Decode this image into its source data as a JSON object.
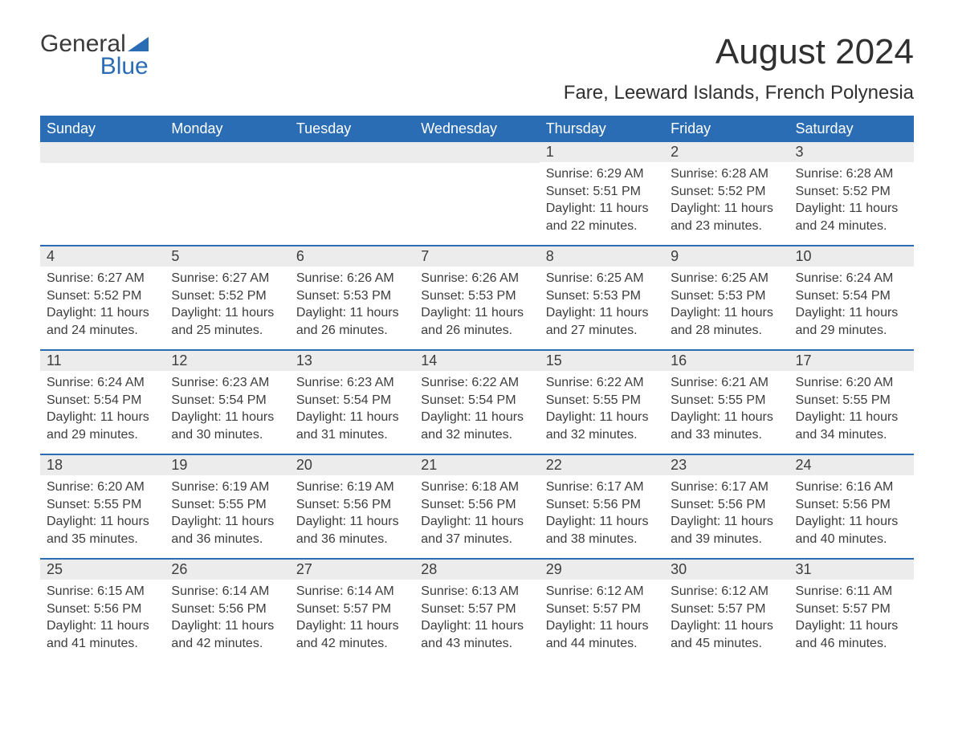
{
  "logo": {
    "text1": "General",
    "text2": "Blue"
  },
  "title": "August 2024",
  "location": "Fare, Leeward Islands, French Polynesia",
  "weekdays": [
    "Sunday",
    "Monday",
    "Tuesday",
    "Wednesday",
    "Thursday",
    "Friday",
    "Saturday"
  ],
  "labels": {
    "sunrise": "Sunrise:",
    "sunset": "Sunset:",
    "daylight": "Daylight:"
  },
  "styling": {
    "header_bg": "#2a6db4",
    "header_text": "#ffffff",
    "day_number_bg": "#ececec",
    "border_color": "#2a6db4",
    "body_text": "#3d3d3d",
    "title_fontsize": 44,
    "location_fontsize": 24,
    "weekday_fontsize": 18,
    "body_fontsize": 16
  },
  "weeks": [
    [
      {
        "day": "",
        "sunrise": "",
        "sunset": "",
        "daylight": ""
      },
      {
        "day": "",
        "sunrise": "",
        "sunset": "",
        "daylight": ""
      },
      {
        "day": "",
        "sunrise": "",
        "sunset": "",
        "daylight": ""
      },
      {
        "day": "",
        "sunrise": "",
        "sunset": "",
        "daylight": ""
      },
      {
        "day": "1",
        "sunrise": "6:29 AM",
        "sunset": "5:51 PM",
        "daylight": "11 hours and 22 minutes."
      },
      {
        "day": "2",
        "sunrise": "6:28 AM",
        "sunset": "5:52 PM",
        "daylight": "11 hours and 23 minutes."
      },
      {
        "day": "3",
        "sunrise": "6:28 AM",
        "sunset": "5:52 PM",
        "daylight": "11 hours and 24 minutes."
      }
    ],
    [
      {
        "day": "4",
        "sunrise": "6:27 AM",
        "sunset": "5:52 PM",
        "daylight": "11 hours and 24 minutes."
      },
      {
        "day": "5",
        "sunrise": "6:27 AM",
        "sunset": "5:52 PM",
        "daylight": "11 hours and 25 minutes."
      },
      {
        "day": "6",
        "sunrise": "6:26 AM",
        "sunset": "5:53 PM",
        "daylight": "11 hours and 26 minutes."
      },
      {
        "day": "7",
        "sunrise": "6:26 AM",
        "sunset": "5:53 PM",
        "daylight": "11 hours and 26 minutes."
      },
      {
        "day": "8",
        "sunrise": "6:25 AM",
        "sunset": "5:53 PM",
        "daylight": "11 hours and 27 minutes."
      },
      {
        "day": "9",
        "sunrise": "6:25 AM",
        "sunset": "5:53 PM",
        "daylight": "11 hours and 28 minutes."
      },
      {
        "day": "10",
        "sunrise": "6:24 AM",
        "sunset": "5:54 PM",
        "daylight": "11 hours and 29 minutes."
      }
    ],
    [
      {
        "day": "11",
        "sunrise": "6:24 AM",
        "sunset": "5:54 PM",
        "daylight": "11 hours and 29 minutes."
      },
      {
        "day": "12",
        "sunrise": "6:23 AM",
        "sunset": "5:54 PM",
        "daylight": "11 hours and 30 minutes."
      },
      {
        "day": "13",
        "sunrise": "6:23 AM",
        "sunset": "5:54 PM",
        "daylight": "11 hours and 31 minutes."
      },
      {
        "day": "14",
        "sunrise": "6:22 AM",
        "sunset": "5:54 PM",
        "daylight": "11 hours and 32 minutes."
      },
      {
        "day": "15",
        "sunrise": "6:22 AM",
        "sunset": "5:55 PM",
        "daylight": "11 hours and 32 minutes."
      },
      {
        "day": "16",
        "sunrise": "6:21 AM",
        "sunset": "5:55 PM",
        "daylight": "11 hours and 33 minutes."
      },
      {
        "day": "17",
        "sunrise": "6:20 AM",
        "sunset": "5:55 PM",
        "daylight": "11 hours and 34 minutes."
      }
    ],
    [
      {
        "day": "18",
        "sunrise": "6:20 AM",
        "sunset": "5:55 PM",
        "daylight": "11 hours and 35 minutes."
      },
      {
        "day": "19",
        "sunrise": "6:19 AM",
        "sunset": "5:55 PM",
        "daylight": "11 hours and 36 minutes."
      },
      {
        "day": "20",
        "sunrise": "6:19 AM",
        "sunset": "5:56 PM",
        "daylight": "11 hours and 36 minutes."
      },
      {
        "day": "21",
        "sunrise": "6:18 AM",
        "sunset": "5:56 PM",
        "daylight": "11 hours and 37 minutes."
      },
      {
        "day": "22",
        "sunrise": "6:17 AM",
        "sunset": "5:56 PM",
        "daylight": "11 hours and 38 minutes."
      },
      {
        "day": "23",
        "sunrise": "6:17 AM",
        "sunset": "5:56 PM",
        "daylight": "11 hours and 39 minutes."
      },
      {
        "day": "24",
        "sunrise": "6:16 AM",
        "sunset": "5:56 PM",
        "daylight": "11 hours and 40 minutes."
      }
    ],
    [
      {
        "day": "25",
        "sunrise": "6:15 AM",
        "sunset": "5:56 PM",
        "daylight": "11 hours and 41 minutes."
      },
      {
        "day": "26",
        "sunrise": "6:14 AM",
        "sunset": "5:56 PM",
        "daylight": "11 hours and 42 minutes."
      },
      {
        "day": "27",
        "sunrise": "6:14 AM",
        "sunset": "5:57 PM",
        "daylight": "11 hours and 42 minutes."
      },
      {
        "day": "28",
        "sunrise": "6:13 AM",
        "sunset": "5:57 PM",
        "daylight": "11 hours and 43 minutes."
      },
      {
        "day": "29",
        "sunrise": "6:12 AM",
        "sunset": "5:57 PM",
        "daylight": "11 hours and 44 minutes."
      },
      {
        "day": "30",
        "sunrise": "6:12 AM",
        "sunset": "5:57 PM",
        "daylight": "11 hours and 45 minutes."
      },
      {
        "day": "31",
        "sunrise": "6:11 AM",
        "sunset": "5:57 PM",
        "daylight": "11 hours and 46 minutes."
      }
    ]
  ]
}
